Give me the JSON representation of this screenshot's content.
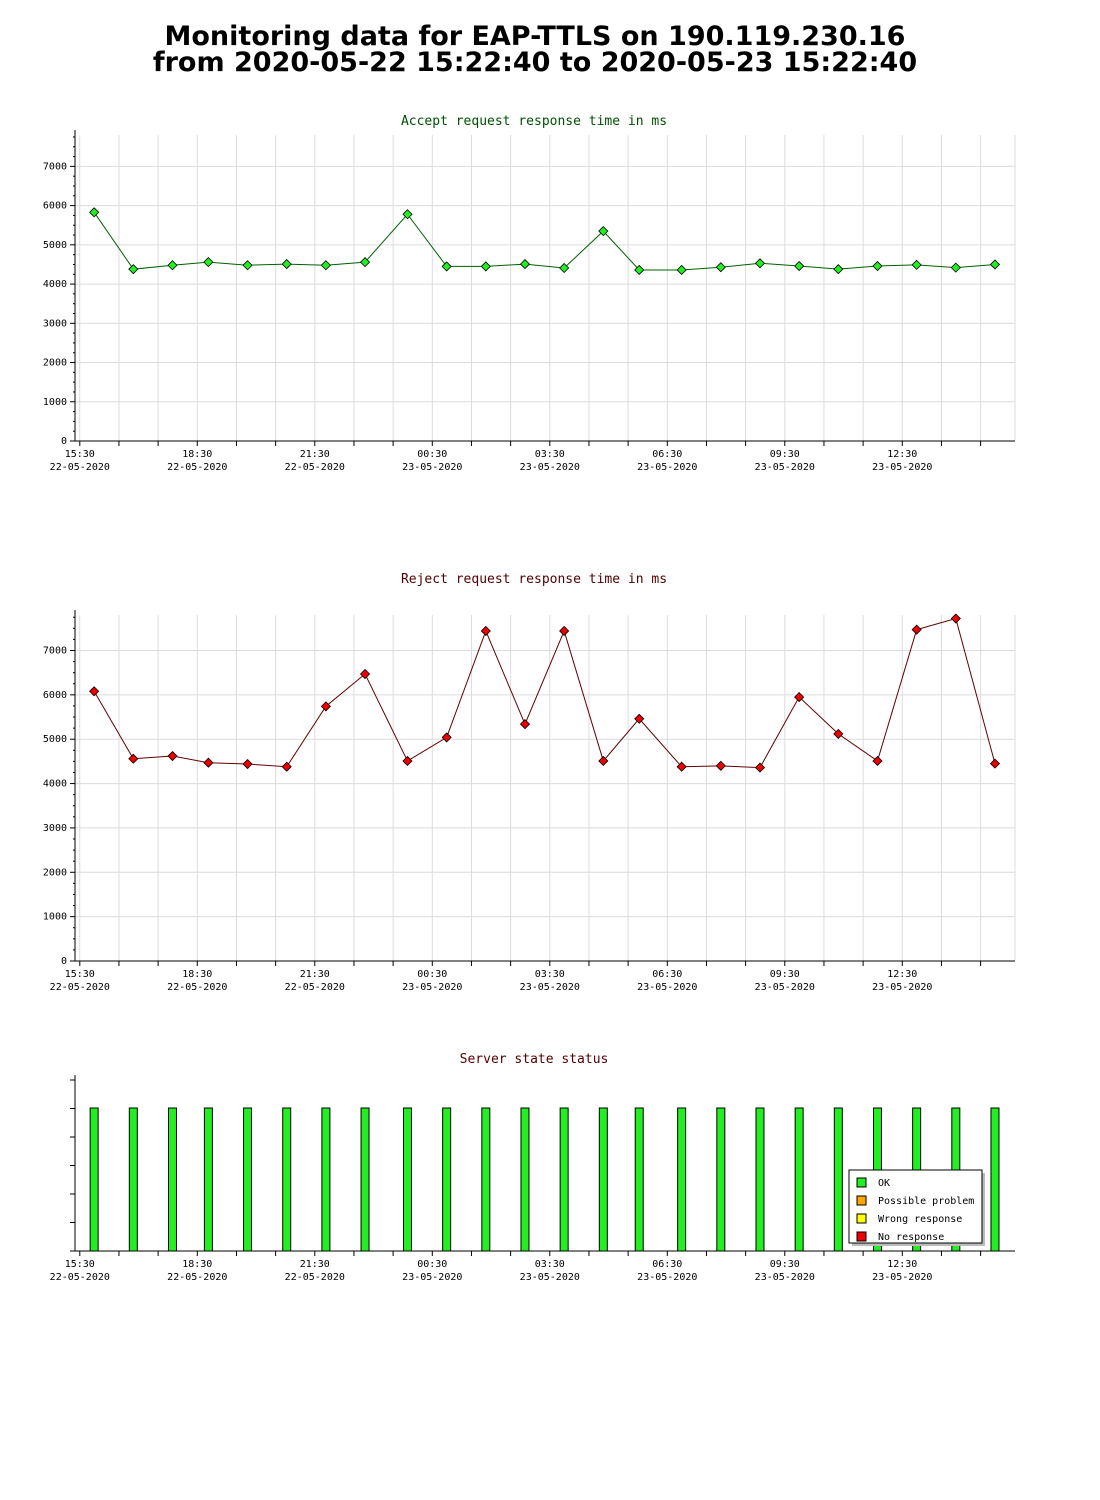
{
  "page": {
    "title_line1": "Monitoring data for EAP-TTLS on 190.119.230.16",
    "title_line2": "from 2020-05-22 15:22:40 to 2020-05-23 15:22:40"
  },
  "chart_data": [
    {
      "type": "line",
      "title": "Accept request response time in ms",
      "title_color": "#005000",
      "point_color": "#22ee22",
      "line_color": "#006000",
      "ylim": [
        0,
        7800
      ],
      "yticks": [
        0,
        1000,
        2000,
        3000,
        4000,
        5000,
        6000,
        7000
      ],
      "xticks": [
        {
          "time": "15:30",
          "date": "22-05-2020"
        },
        {
          "time": "18:30",
          "date": "22-05-2020"
        },
        {
          "time": "21:30",
          "date": "22-05-2020"
        },
        {
          "time": "00:30",
          "date": "23-05-2020"
        },
        {
          "time": "03:30",
          "date": "23-05-2020"
        },
        {
          "time": "06:30",
          "date": "23-05-2020"
        },
        {
          "time": "09:30",
          "date": "23-05-2020"
        },
        {
          "time": "12:30",
          "date": "23-05-2020"
        }
      ],
      "x": [
        "15:52",
        "16:52",
        "17:52",
        "18:47",
        "19:47",
        "20:47",
        "21:47",
        "22:47",
        "23:52",
        "00:52",
        "01:52",
        "02:52",
        "03:52",
        "04:52",
        "05:47",
        "06:52",
        "07:52",
        "08:52",
        "09:52",
        "10:52",
        "11:52",
        "12:52",
        "13:52",
        "14:52"
      ],
      "values": [
        5830,
        4380,
        4480,
        4560,
        4480,
        4510,
        4480,
        4560,
        5780,
        4450,
        4450,
        4510,
        4410,
        5350,
        4360,
        4360,
        4430,
        4530,
        4460,
        4380,
        4460,
        4490,
        4420,
        4500
      ],
      "grid": true
    },
    {
      "type": "line",
      "title": "Reject request response time in ms",
      "title_color": "#500000",
      "point_color": "#ee0000",
      "line_color": "#600000",
      "ylim": [
        0,
        7800
      ],
      "yticks": [
        0,
        1000,
        2000,
        3000,
        4000,
        5000,
        6000,
        7000
      ],
      "xticks": [
        {
          "time": "15:30",
          "date": "22-05-2020"
        },
        {
          "time": "18:30",
          "date": "22-05-2020"
        },
        {
          "time": "21:30",
          "date": "22-05-2020"
        },
        {
          "time": "00:30",
          "date": "23-05-2020"
        },
        {
          "time": "03:30",
          "date": "23-05-2020"
        },
        {
          "time": "06:30",
          "date": "23-05-2020"
        },
        {
          "time": "09:30",
          "date": "23-05-2020"
        },
        {
          "time": "12:30",
          "date": "23-05-2020"
        }
      ],
      "x": [
        "15:52",
        "16:52",
        "17:52",
        "18:47",
        "19:47",
        "20:47",
        "21:47",
        "22:47",
        "23:52",
        "00:52",
        "01:52",
        "02:52",
        "03:52",
        "04:52",
        "05:47",
        "06:52",
        "07:52",
        "08:52",
        "09:52",
        "10:52",
        "11:52",
        "12:52",
        "13:52",
        "14:52"
      ],
      "values": [
        6080,
        4560,
        4620,
        4470,
        4440,
        4380,
        5740,
        6470,
        4510,
        5040,
        7440,
        5340,
        7440,
        4510,
        5460,
        4380,
        4400,
        4360,
        5950,
        5120,
        4510,
        7470,
        7720,
        4450
      ],
      "grid": true
    },
    {
      "type": "bar",
      "title": "Server state status",
      "title_color": "#500000",
      "xticks": [
        {
          "time": "15:30",
          "date": "22-05-2020"
        },
        {
          "time": "18:30",
          "date": "22-05-2020"
        },
        {
          "time": "21:30",
          "date": "22-05-2020"
        },
        {
          "time": "00:30",
          "date": "23-05-2020"
        },
        {
          "time": "03:30",
          "date": "23-05-2020"
        },
        {
          "time": "06:30",
          "date": "23-05-2020"
        },
        {
          "time": "09:30",
          "date": "23-05-2020"
        },
        {
          "time": "12:30",
          "date": "23-05-2020"
        }
      ],
      "x": [
        "15:52",
        "16:52",
        "17:52",
        "18:47",
        "19:47",
        "20:47",
        "21:47",
        "22:47",
        "23:52",
        "00:52",
        "01:52",
        "02:52",
        "03:52",
        "04:52",
        "05:47",
        "06:52",
        "07:52",
        "08:52",
        "09:52",
        "10:52",
        "11:52",
        "12:52",
        "13:52",
        "14:52"
      ],
      "status": [
        "OK",
        "OK",
        "OK",
        "OK",
        "OK",
        "OK",
        "OK",
        "OK",
        "OK",
        "OK",
        "OK",
        "OK",
        "OK",
        "OK",
        "OK",
        "OK",
        "OK",
        "OK",
        "OK",
        "OK",
        "OK",
        "OK",
        "OK",
        "OK"
      ],
      "legend_position": "bottom-right",
      "legend": [
        {
          "label": "OK",
          "color": "#22ee22"
        },
        {
          "label": "Possible problem",
          "color": "#ffa500"
        },
        {
          "label": "Wrong response",
          "color": "#ffff00"
        },
        {
          "label": "No response",
          "color": "#ee0000"
        }
      ]
    }
  ]
}
